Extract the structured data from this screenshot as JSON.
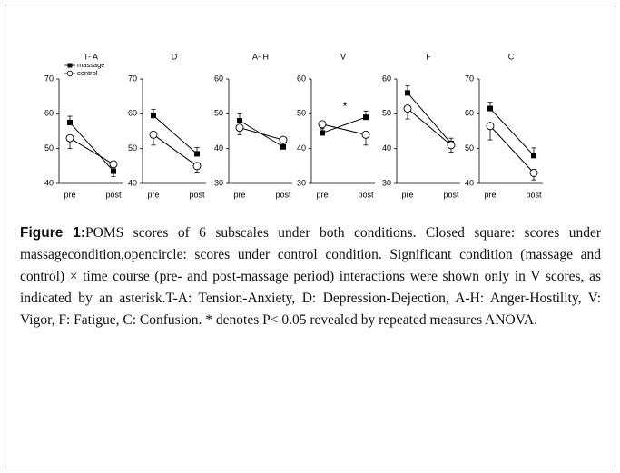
{
  "chart_data": [
    {
      "type": "line",
      "title": "T- A",
      "categories": [
        "pre",
        "post"
      ],
      "ylim": [
        40,
        70
      ],
      "yticks": [
        40,
        50,
        60,
        70
      ],
      "series": [
        {
          "name": "massage",
          "color": "#000000",
          "marker": "square",
          "values": [
            57.5,
            43.5
          ],
          "errors": [
            1.8,
            2.2
          ]
        },
        {
          "name": "control",
          "color": "#000000",
          "marker": "circle",
          "values": [
            53,
            45.5
          ],
          "errors": [
            3,
            3.5
          ]
        }
      ]
    },
    {
      "type": "line",
      "title": "D",
      "categories": [
        "pre",
        "post"
      ],
      "ylim": [
        40,
        70
      ],
      "yticks": [
        40,
        50,
        60,
        70
      ],
      "series": [
        {
          "color": "#000000",
          "marker": "square",
          "values": [
            59.5,
            48.5
          ],
          "errors": [
            1.8,
            1.8
          ]
        },
        {
          "color": "#000000",
          "marker": "circle",
          "values": [
            54,
            45
          ],
          "errors": [
            3,
            2
          ]
        }
      ]
    },
    {
      "type": "line",
      "title": "A- H",
      "categories": [
        "pre",
        "post"
      ],
      "ylim": [
        30,
        60
      ],
      "yticks": [
        30,
        40,
        50,
        60
      ],
      "series": [
        {
          "color": "#000000",
          "marker": "square",
          "values": [
            48,
            40.5
          ],
          "errors": [
            2,
            1.2
          ]
        },
        {
          "color": "#000000",
          "marker": "circle",
          "values": [
            46,
            42.5
          ],
          "errors": [
            2,
            1.8
          ]
        }
      ]
    },
    {
      "type": "line",
      "title": "V",
      "categories": [
        "pre",
        "post"
      ],
      "ylim": [
        30,
        60
      ],
      "yticks": [
        30,
        40,
        50,
        60
      ],
      "annotation": "*",
      "series": [
        {
          "color": "#000000",
          "marker": "square",
          "values": [
            44.5,
            49
          ],
          "errors": [
            1.2,
            1.8
          ]
        },
        {
          "color": "#000000",
          "marker": "circle",
          "values": [
            47,
            44
          ],
          "errors": [
            3,
            3
          ]
        }
      ]
    },
    {
      "type": "line",
      "title": "F",
      "categories": [
        "pre",
        "post"
      ],
      "ylim": [
        30,
        60
      ],
      "yticks": [
        30,
        40,
        50,
        60
      ],
      "series": [
        {
          "color": "#000000",
          "marker": "square",
          "values": [
            56,
            41.5
          ],
          "errors": [
            2,
            1.5
          ]
        },
        {
          "color": "#000000",
          "marker": "circle",
          "values": [
            51.5,
            41
          ],
          "errors": [
            3,
            2
          ]
        }
      ]
    },
    {
      "type": "line",
      "title": "C",
      "categories": [
        "pre",
        "post"
      ],
      "ylim": [
        40,
        70
      ],
      "yticks": [
        40,
        50,
        60,
        70
      ],
      "series": [
        {
          "color": "#000000",
          "marker": "square",
          "values": [
            61.5,
            48
          ],
          "errors": [
            1.8,
            2.2
          ]
        },
        {
          "color": "#000000",
          "marker": "circle",
          "values": [
            56.5,
            43
          ],
          "errors": [
            4,
            2
          ]
        }
      ]
    }
  ],
  "caption": {
    "label": "Figure 1:",
    "text": "POMS scores of 6 subscales under both conditions. Closed square: scores under massagecondition,opencircle: scores under control condition. Significant condition (massage and control) × time course (pre- and post-massage period) interactions were shown only in V scores, as indicated by an asterisk.T-A: Tension-Anxiety, D: Depression-Dejection, A-H: Anger-Hostility, V: Vigor, F: Fatigue, C: Confusion. * denotes P&lt; 0.05 revealed by repeated measures ANOVA."
  }
}
